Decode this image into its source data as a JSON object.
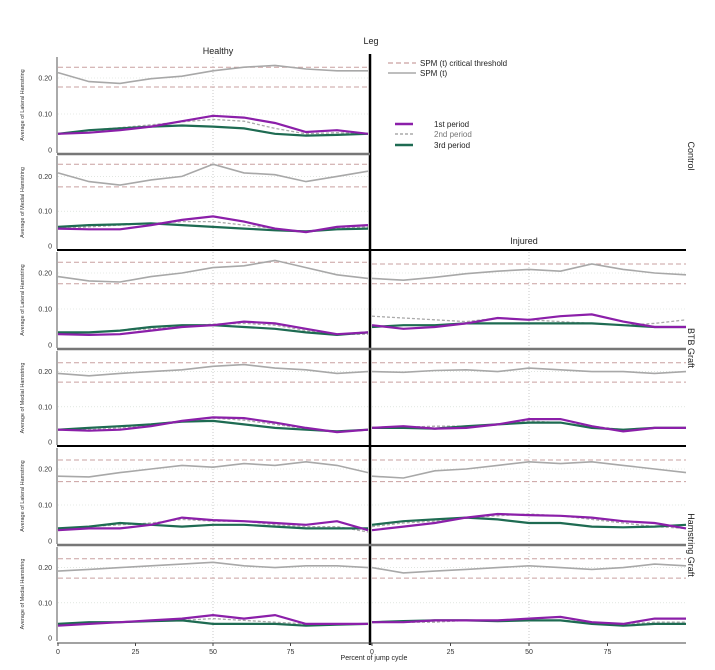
{
  "chart_data": {
    "type": "line",
    "figure_title": "Leg",
    "column_titles": [
      "Healthy",
      "Injured"
    ],
    "row_group_labels": [
      "Control",
      "BTB Graft",
      "Hamstring Graft"
    ],
    "xlabel": "Percent of jump cycle",
    "xlim": [
      0,
      100
    ],
    "x_ticks": [
      0,
      25,
      50,
      75
    ],
    "x_tick_labels": [
      "0",
      "25",
      "50",
      "75"
    ],
    "ylim": [
      0,
      0.25
    ],
    "y_ticks": [
      0,
      0.1,
      0.2
    ],
    "y_tick_labels": [
      "0",
      "0.10",
      "0.20"
    ],
    "grid": "dotted reference at x=50; dashed threshold lines",
    "legend": {
      "position": "top-right of injured column",
      "spm_entries": [
        {
          "label": "SPM (t) critical threshold",
          "color": "#c9a0a0",
          "style": "dashed"
        },
        {
          "label": "SPM (t)",
          "color": "#a8a8a8",
          "style": "solid"
        }
      ],
      "period_entries": [
        {
          "label": "1st period",
          "color": "#8b1fa9",
          "style": "solid"
        },
        {
          "label": "2nd period",
          "color": "#aaaaaa",
          "style": "dashed"
        },
        {
          "label": "3rd period",
          "color": "#1e6b52",
          "style": "solid"
        }
      ]
    },
    "x_points": [
      0,
      10,
      20,
      30,
      40,
      50,
      60,
      70,
      80,
      90,
      100
    ],
    "panels": [
      {
        "group": "Control",
        "muscle": "Lateral",
        "col": "Healthy",
        "ylabel": "Average of Lateral Hamstring",
        "spm": [
          0.215,
          0.19,
          0.185,
          0.198,
          0.205,
          0.22,
          0.23,
          0.235,
          0.225,
          0.22,
          0.22
        ],
        "threshold_upper": 0.23,
        "threshold_lower": 0.175,
        "p1": [
          0.045,
          0.048,
          0.055,
          0.065,
          0.08,
          0.095,
          0.09,
          0.075,
          0.05,
          0.055,
          0.045
        ],
        "p2": [
          0.045,
          0.055,
          0.062,
          0.07,
          0.078,
          0.085,
          0.08,
          0.06,
          0.045,
          0.048,
          0.045
        ],
        "p3": [
          0.045,
          0.055,
          0.06,
          0.065,
          0.068,
          0.065,
          0.06,
          0.045,
          0.04,
          0.042,
          0.045
        ]
      },
      {
        "group": "Control",
        "muscle": "Medial",
        "col": "Healthy",
        "ylabel": "Average of Medial Hamstring",
        "spm": [
          0.21,
          0.185,
          0.175,
          0.19,
          0.2,
          0.235,
          0.21,
          0.205,
          0.185,
          0.2,
          0.215
        ],
        "threshold_upper": 0.235,
        "threshold_lower": 0.17,
        "p1": [
          0.05,
          0.048,
          0.048,
          0.06,
          0.075,
          0.085,
          0.07,
          0.05,
          0.04,
          0.055,
          0.06
        ],
        "p2": [
          0.05,
          0.055,
          0.06,
          0.065,
          0.07,
          0.07,
          0.06,
          0.05,
          0.04,
          0.05,
          0.055
        ],
        "p3": [
          0.055,
          0.06,
          0.062,
          0.065,
          0.06,
          0.055,
          0.05,
          0.045,
          0.042,
          0.048,
          0.05
        ]
      },
      {
        "group": "BTB Graft",
        "muscle": "Lateral",
        "col": "Healthy",
        "ylabel": "Average of Lateral Hamstring",
        "spm": [
          0.19,
          0.178,
          0.175,
          0.19,
          0.2,
          0.215,
          0.22,
          0.235,
          0.215,
          0.195,
          0.185
        ],
        "threshold_upper": 0.23,
        "threshold_lower": 0.17,
        "p1": [
          0.03,
          0.028,
          0.03,
          0.04,
          0.05,
          0.055,
          0.065,
          0.06,
          0.045,
          0.03,
          0.035
        ],
        "p2": [
          0.035,
          0.035,
          0.04,
          0.045,
          0.05,
          0.058,
          0.06,
          0.055,
          0.04,
          0.03,
          0.03
        ],
        "p3": [
          0.035,
          0.035,
          0.04,
          0.05,
          0.055,
          0.055,
          0.05,
          0.045,
          0.035,
          0.028,
          0.035
        ]
      },
      {
        "group": "BTB Graft",
        "muscle": "Lateral",
        "col": "Injured",
        "ylabel": "",
        "spm": [
          0.185,
          0.18,
          0.188,
          0.198,
          0.205,
          0.21,
          0.205,
          0.225,
          0.21,
          0.2,
          0.195
        ],
        "threshold_upper": 0.225,
        "threshold_lower": 0.17,
        "p1": [
          0.055,
          0.045,
          0.05,
          0.06,
          0.075,
          0.07,
          0.08,
          0.085,
          0.065,
          0.05,
          0.05
        ],
        "p2": [
          0.08,
          0.075,
          0.07,
          0.065,
          0.075,
          0.07,
          0.065,
          0.06,
          0.055,
          0.06,
          0.07
        ],
        "p3": [
          0.05,
          0.055,
          0.055,
          0.06,
          0.06,
          0.06,
          0.06,
          0.06,
          0.055,
          0.05,
          0.05
        ]
      },
      {
        "group": "BTB Graft",
        "muscle": "Medial",
        "col": "Healthy",
        "ylabel": "Average of Medial Hamstring",
        "spm": [
          0.195,
          0.188,
          0.195,
          0.2,
          0.205,
          0.215,
          0.22,
          0.21,
          0.205,
          0.195,
          0.2
        ],
        "threshold_upper": 0.225,
        "threshold_lower": 0.17,
        "p1": [
          0.035,
          0.032,
          0.035,
          0.045,
          0.06,
          0.07,
          0.068,
          0.055,
          0.04,
          0.028,
          0.035
        ],
        "p2": [
          0.035,
          0.035,
          0.04,
          0.05,
          0.06,
          0.068,
          0.062,
          0.05,
          0.038,
          0.03,
          0.035
        ],
        "p3": [
          0.035,
          0.04,
          0.045,
          0.05,
          0.058,
          0.06,
          0.05,
          0.04,
          0.035,
          0.03,
          0.035
        ]
      },
      {
        "group": "BTB Graft",
        "muscle": "Medial",
        "col": "Injured",
        "ylabel": "",
        "spm": [
          0.2,
          0.198,
          0.203,
          0.205,
          0.2,
          0.21,
          0.205,
          0.2,
          0.2,
          0.195,
          0.2
        ],
        "threshold_upper": 0.225,
        "threshold_lower": 0.17,
        "p1": [
          0.04,
          0.045,
          0.038,
          0.04,
          0.05,
          0.065,
          0.065,
          0.045,
          0.03,
          0.04,
          0.04
        ],
        "p2": [
          0.04,
          0.042,
          0.045,
          0.045,
          0.05,
          0.06,
          0.055,
          0.045,
          0.035,
          0.04,
          0.04
        ],
        "p3": [
          0.04,
          0.04,
          0.038,
          0.045,
          0.05,
          0.055,
          0.055,
          0.04,
          0.035,
          0.04,
          0.04
        ]
      },
      {
        "group": "Hamstring Graft",
        "muscle": "Lateral",
        "col": "Healthy",
        "ylabel": "Average of Lateral Hamstring",
        "spm": [
          0.18,
          0.178,
          0.19,
          0.2,
          0.21,
          0.205,
          0.215,
          0.21,
          0.22,
          0.21,
          0.19
        ],
        "threshold_upper": 0.225,
        "threshold_lower": 0.165,
        "p1": [
          0.03,
          0.035,
          0.035,
          0.045,
          0.065,
          0.058,
          0.055,
          0.05,
          0.045,
          0.055,
          0.03
        ],
        "p2": [
          0.035,
          0.04,
          0.045,
          0.05,
          0.06,
          0.055,
          0.055,
          0.045,
          0.04,
          0.04,
          0.025
        ],
        "p3": [
          0.035,
          0.04,
          0.05,
          0.045,
          0.04,
          0.045,
          0.045,
          0.04,
          0.035,
          0.035,
          0.035
        ]
      },
      {
        "group": "Hamstring Graft",
        "muscle": "Lateral",
        "col": "Injured",
        "ylabel": "",
        "spm": [
          0.18,
          0.175,
          0.195,
          0.2,
          0.21,
          0.22,
          0.215,
          0.22,
          0.21,
          0.2,
          0.19
        ],
        "threshold_upper": 0.225,
        "threshold_lower": 0.165,
        "p1": [
          0.03,
          0.04,
          0.05,
          0.065,
          0.075,
          0.072,
          0.07,
          0.065,
          0.055,
          0.05,
          0.035
        ],
        "p2": [
          0.04,
          0.05,
          0.055,
          0.065,
          0.07,
          0.075,
          0.07,
          0.06,
          0.05,
          0.04,
          0.035
        ],
        "p3": [
          0.045,
          0.055,
          0.06,
          0.065,
          0.06,
          0.05,
          0.05,
          0.04,
          0.038,
          0.04,
          0.045
        ]
      },
      {
        "group": "Hamstring Graft",
        "muscle": "Medial",
        "col": "Healthy",
        "ylabel": "Average of Medial Hamstring",
        "spm": [
          0.19,
          0.195,
          0.2,
          0.205,
          0.21,
          0.215,
          0.205,
          0.2,
          0.205,
          0.205,
          0.2
        ],
        "threshold_upper": 0.225,
        "threshold_lower": 0.17,
        "p1": [
          0.035,
          0.04,
          0.045,
          0.05,
          0.055,
          0.065,
          0.055,
          0.065,
          0.04,
          0.04,
          0.04
        ],
        "p2": [
          0.04,
          0.04,
          0.045,
          0.05,
          0.05,
          0.055,
          0.05,
          0.045,
          0.04,
          0.04,
          0.04
        ],
        "p3": [
          0.04,
          0.045,
          0.045,
          0.048,
          0.05,
          0.04,
          0.04,
          0.04,
          0.035,
          0.038,
          0.04
        ]
      },
      {
        "group": "Hamstring Graft",
        "muscle": "Medial",
        "col": "Injured",
        "ylabel": "",
        "spm": [
          0.2,
          0.185,
          0.19,
          0.195,
          0.2,
          0.205,
          0.2,
          0.195,
          0.2,
          0.21,
          0.205
        ],
        "threshold_upper": 0.225,
        "threshold_lower": 0.17,
        "p1": [
          0.045,
          0.045,
          0.05,
          0.05,
          0.05,
          0.055,
          0.06,
          0.045,
          0.04,
          0.055,
          0.055
        ],
        "p2": [
          0.045,
          0.045,
          0.045,
          0.05,
          0.05,
          0.05,
          0.05,
          0.045,
          0.04,
          0.045,
          0.045
        ],
        "p3": [
          0.045,
          0.048,
          0.05,
          0.05,
          0.048,
          0.05,
          0.05,
          0.04,
          0.035,
          0.04,
          0.04
        ]
      }
    ]
  }
}
